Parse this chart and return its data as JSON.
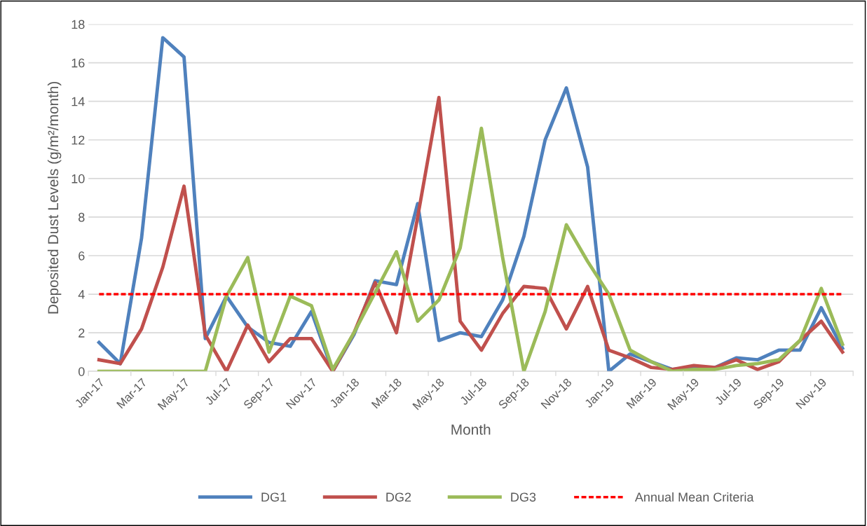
{
  "chart_data": {
    "type": "line",
    "xlabel": "Month",
    "ylabel": "Deposited Dust Levels (g/m²/month)",
    "categories": [
      "Jan-17",
      null,
      "Mar-17",
      null,
      "May-17",
      null,
      "Jul-17",
      null,
      "Sep-17",
      null,
      "Nov-17",
      null,
      "Jan-18",
      null,
      "Mar-18",
      null,
      "May-18",
      null,
      "Jul-18",
      null,
      "Sep-18",
      null,
      "Nov-18",
      null,
      "Jan-19",
      null,
      "Mar-19",
      null,
      "May-19",
      null,
      "Jul-19",
      null,
      "Sep-19",
      null,
      "Nov-19",
      null
    ],
    "series": [
      {
        "name": "DG1",
        "color": "#4f81bd",
        "values": [
          1.5,
          0.4,
          6.9,
          17.3,
          16.3,
          1.7,
          3.9,
          2.3,
          1.5,
          1.3,
          3.1,
          0.0,
          1.9,
          4.7,
          4.5,
          8.7,
          1.6,
          2.0,
          1.8,
          3.7,
          7.0,
          12.0,
          14.7,
          10.6,
          0.0,
          0.9,
          0.5,
          0.1,
          0.2,
          0.2,
          0.7,
          0.6,
          1.1,
          1.1,
          3.3,
          1.2
        ]
      },
      {
        "name": "DG2",
        "color": "#c0504d",
        "values": [
          0.6,
          0.4,
          2.2,
          5.4,
          9.6,
          1.9,
          0.0,
          2.4,
          0.5,
          1.7,
          1.7,
          0.0,
          2.0,
          4.6,
          2.0,
          8.0,
          14.2,
          2.6,
          1.1,
          3.0,
          4.4,
          4.3,
          2.2,
          4.4,
          1.1,
          0.7,
          0.2,
          0.1,
          0.3,
          0.2,
          0.6,
          0.1,
          0.5,
          1.6,
          2.6,
          1.0
        ]
      },
      {
        "name": "DG3",
        "color": "#9bbb59",
        "values": [
          0.0,
          0.0,
          0.0,
          0.0,
          0.0,
          0.0,
          3.9,
          5.9,
          1.0,
          3.9,
          3.4,
          0.1,
          2.0,
          4.1,
          6.2,
          2.6,
          3.7,
          6.4,
          12.6,
          5.9,
          0.0,
          3.1,
          7.6,
          5.7,
          4.0,
          1.1,
          0.5,
          0.0,
          0.1,
          0.1,
          0.3,
          0.4,
          0.6,
          1.6,
          4.3,
          1.4
        ]
      }
    ],
    "ref_lines": [
      {
        "axis": "y",
        "value": 4,
        "label": "Annual Mean Criteria",
        "color": "#ff0000",
        "line_style": "dashed"
      }
    ],
    "ylim": [
      0,
      18
    ],
    "yticks": [
      0,
      2,
      4,
      6,
      8,
      10,
      12,
      14,
      16,
      18
    ],
    "grid": "y",
    "legend": "bottom",
    "marker": "none",
    "line_style": "solid"
  }
}
